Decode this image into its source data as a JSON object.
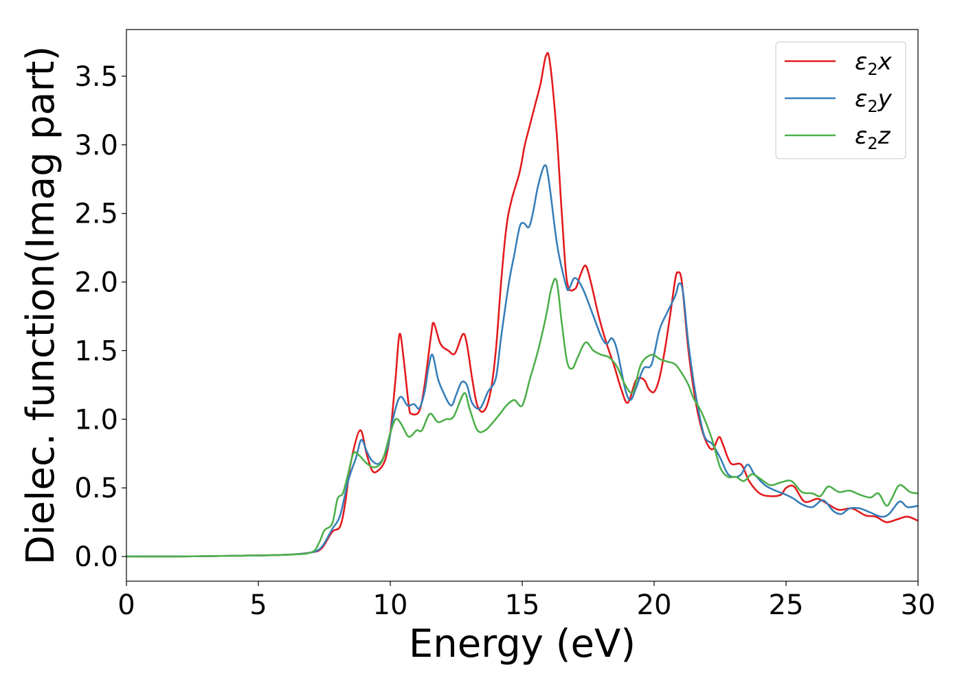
{
  "chart_data": {
    "type": "line",
    "title": "",
    "xlabel": "Energy (eV)",
    "ylabel": "Dielec. function(Imag part)",
    "xlim": [
      0,
      30
    ],
    "ylim": [
      -0.18,
      3.84
    ],
    "xticks": [
      0,
      5,
      10,
      15,
      20,
      25,
      30
    ],
    "xtick_labels": [
      "0",
      "5",
      "10",
      "15",
      "20",
      "25",
      "30"
    ],
    "yticks": [
      0.0,
      0.5,
      1.0,
      1.5,
      2.0,
      2.5,
      3.0,
      3.5
    ],
    "ytick_labels": [
      "0.0",
      "0.5",
      "1.0",
      "1.5",
      "2.0",
      "2.5",
      "3.0",
      "3.5"
    ],
    "grid": false,
    "legend_position": "top-right",
    "series": [
      {
        "name": "ε2x",
        "legend_base": "ε",
        "legend_sub": "2",
        "legend_suffix": "x",
        "color": "#e31a1c",
        "points": [
          [
            0,
            0.0
          ],
          [
            2,
            0.0
          ],
          [
            4,
            0.005
          ],
          [
            6,
            0.012
          ],
          [
            7,
            0.03
          ],
          [
            7.4,
            0.06
          ],
          [
            7.8,
            0.18
          ],
          [
            8.1,
            0.22
          ],
          [
            8.3,
            0.4
          ],
          [
            8.5,
            0.68
          ],
          [
            8.85,
            0.92
          ],
          [
            9.1,
            0.75
          ],
          [
            9.3,
            0.63
          ],
          [
            9.5,
            0.62
          ],
          [
            9.8,
            0.7
          ],
          [
            10.0,
            0.9
          ],
          [
            10.2,
            1.3
          ],
          [
            10.35,
            1.62
          ],
          [
            10.5,
            1.45
          ],
          [
            10.7,
            1.1
          ],
          [
            10.8,
            1.04
          ],
          [
            11.1,
            1.06
          ],
          [
            11.3,
            1.25
          ],
          [
            11.55,
            1.62
          ],
          [
            11.65,
            1.7
          ],
          [
            11.9,
            1.55
          ],
          [
            12.2,
            1.5
          ],
          [
            12.45,
            1.48
          ],
          [
            12.75,
            1.62
          ],
          [
            12.9,
            1.55
          ],
          [
            13.1,
            1.3
          ],
          [
            13.3,
            1.1
          ],
          [
            13.55,
            1.06
          ],
          [
            13.8,
            1.2
          ],
          [
            14.0,
            1.5
          ],
          [
            14.2,
            2.0
          ],
          [
            14.4,
            2.4
          ],
          [
            14.6,
            2.6
          ],
          [
            14.9,
            2.8
          ],
          [
            15.1,
            3.0
          ],
          [
            15.3,
            3.15
          ],
          [
            15.5,
            3.3
          ],
          [
            15.7,
            3.45
          ],
          [
            15.9,
            3.65
          ],
          [
            16.05,
            3.6
          ],
          [
            16.3,
            3.1
          ],
          [
            16.5,
            2.5
          ],
          [
            16.7,
            2.0
          ],
          [
            17.0,
            1.95
          ],
          [
            17.2,
            2.05
          ],
          [
            17.4,
            2.12
          ],
          [
            17.6,
            2.0
          ],
          [
            17.9,
            1.75
          ],
          [
            18.2,
            1.55
          ],
          [
            18.5,
            1.38
          ],
          [
            18.75,
            1.22
          ],
          [
            19.0,
            1.12
          ],
          [
            19.3,
            1.28
          ],
          [
            19.5,
            1.3
          ],
          [
            19.65,
            1.28
          ],
          [
            19.8,
            1.22
          ],
          [
            20.0,
            1.2
          ],
          [
            20.2,
            1.3
          ],
          [
            20.4,
            1.5
          ],
          [
            20.6,
            1.75
          ],
          [
            20.8,
            2.02
          ],
          [
            20.9,
            2.07
          ],
          [
            21.05,
            2.0
          ],
          [
            21.3,
            1.5
          ],
          [
            21.6,
            1.1
          ],
          [
            21.9,
            0.87
          ],
          [
            22.2,
            0.78
          ],
          [
            22.45,
            0.87
          ],
          [
            22.6,
            0.82
          ],
          [
            22.9,
            0.68
          ],
          [
            23.3,
            0.67
          ],
          [
            23.6,
            0.55
          ],
          [
            24.0,
            0.46
          ],
          [
            24.4,
            0.44
          ],
          [
            24.8,
            0.45
          ],
          [
            25.0,
            0.5
          ],
          [
            25.3,
            0.51
          ],
          [
            25.7,
            0.4
          ],
          [
            26.2,
            0.42
          ],
          [
            26.6,
            0.38
          ],
          [
            27.0,
            0.34
          ],
          [
            27.5,
            0.35
          ],
          [
            28.0,
            0.3
          ],
          [
            28.4,
            0.29
          ],
          [
            28.8,
            0.25
          ],
          [
            29.2,
            0.27
          ],
          [
            29.6,
            0.29
          ],
          [
            30.0,
            0.26
          ]
        ]
      },
      {
        "name": "ε2y",
        "legend_base": "ε",
        "legend_sub": "2",
        "legend_suffix": "y",
        "color": "#377eb8",
        "points": [
          [
            0,
            0.0
          ],
          [
            2,
            0.0
          ],
          [
            4,
            0.005
          ],
          [
            6,
            0.012
          ],
          [
            7,
            0.03
          ],
          [
            7.4,
            0.07
          ],
          [
            7.8,
            0.2
          ],
          [
            8.1,
            0.3
          ],
          [
            8.4,
            0.55
          ],
          [
            8.7,
            0.72
          ],
          [
            8.9,
            0.85
          ],
          [
            9.1,
            0.77
          ],
          [
            9.3,
            0.7
          ],
          [
            9.6,
            0.68
          ],
          [
            9.9,
            0.8
          ],
          [
            10.1,
            1.0
          ],
          [
            10.3,
            1.14
          ],
          [
            10.45,
            1.16
          ],
          [
            10.65,
            1.1
          ],
          [
            10.9,
            1.11
          ],
          [
            11.1,
            1.08
          ],
          [
            11.3,
            1.2
          ],
          [
            11.45,
            1.38
          ],
          [
            11.6,
            1.47
          ],
          [
            11.8,
            1.3
          ],
          [
            12.0,
            1.2
          ],
          [
            12.3,
            1.1
          ],
          [
            12.5,
            1.18
          ],
          [
            12.7,
            1.27
          ],
          [
            12.9,
            1.25
          ],
          [
            13.1,
            1.12
          ],
          [
            13.4,
            1.08
          ],
          [
            13.7,
            1.2
          ],
          [
            14.0,
            1.3
          ],
          [
            14.2,
            1.6
          ],
          [
            14.5,
            2.0
          ],
          [
            14.7,
            2.2
          ],
          [
            14.9,
            2.4
          ],
          [
            15.05,
            2.43
          ],
          [
            15.25,
            2.4
          ],
          [
            15.4,
            2.5
          ],
          [
            15.6,
            2.7
          ],
          [
            15.85,
            2.85
          ],
          [
            16.0,
            2.75
          ],
          [
            16.3,
            2.3
          ],
          [
            16.5,
            2.1
          ],
          [
            16.7,
            1.95
          ],
          [
            16.8,
            1.96
          ],
          [
            17.0,
            2.03
          ],
          [
            17.3,
            1.95
          ],
          [
            17.7,
            1.75
          ],
          [
            18.0,
            1.6
          ],
          [
            18.2,
            1.55
          ],
          [
            18.4,
            1.59
          ],
          [
            18.6,
            1.5
          ],
          [
            18.9,
            1.22
          ],
          [
            19.1,
            1.14
          ],
          [
            19.3,
            1.22
          ],
          [
            19.6,
            1.37
          ],
          [
            19.9,
            1.4
          ],
          [
            20.2,
            1.65
          ],
          [
            20.5,
            1.78
          ],
          [
            20.8,
            1.9
          ],
          [
            20.95,
            1.99
          ],
          [
            21.1,
            1.92
          ],
          [
            21.3,
            1.55
          ],
          [
            21.6,
            1.15
          ],
          [
            21.9,
            0.88
          ],
          [
            22.2,
            0.82
          ],
          [
            22.5,
            0.72
          ],
          [
            22.8,
            0.6
          ],
          [
            23.1,
            0.58
          ],
          [
            23.3,
            0.6
          ],
          [
            23.55,
            0.67
          ],
          [
            23.8,
            0.6
          ],
          [
            24.2,
            0.52
          ],
          [
            24.6,
            0.48
          ],
          [
            25.0,
            0.45
          ],
          [
            25.3,
            0.42
          ],
          [
            25.6,
            0.38
          ],
          [
            26.0,
            0.36
          ],
          [
            26.4,
            0.41
          ],
          [
            26.8,
            0.33
          ],
          [
            27.1,
            0.31
          ],
          [
            27.4,
            0.35
          ],
          [
            27.8,
            0.35
          ],
          [
            28.2,
            0.32
          ],
          [
            28.6,
            0.29
          ],
          [
            28.9,
            0.31
          ],
          [
            29.3,
            0.4
          ],
          [
            29.6,
            0.36
          ],
          [
            30.0,
            0.37
          ]
        ]
      },
      {
        "name": "ε2z",
        "legend_base": "ε",
        "legend_sub": "2",
        "legend_suffix": "z",
        "color": "#4daf4a",
        "points": [
          [
            0,
            0.0
          ],
          [
            2,
            0.0
          ],
          [
            4,
            0.005
          ],
          [
            6,
            0.012
          ],
          [
            7,
            0.03
          ],
          [
            7.3,
            0.1
          ],
          [
            7.5,
            0.19
          ],
          [
            7.8,
            0.24
          ],
          [
            8.0,
            0.42
          ],
          [
            8.2,
            0.46
          ],
          [
            8.4,
            0.6
          ],
          [
            8.6,
            0.75
          ],
          [
            8.8,
            0.74
          ],
          [
            9.1,
            0.68
          ],
          [
            9.4,
            0.65
          ],
          [
            9.7,
            0.7
          ],
          [
            10.0,
            0.9
          ],
          [
            10.2,
            1.0
          ],
          [
            10.4,
            0.97
          ],
          [
            10.65,
            0.88
          ],
          [
            10.8,
            0.88
          ],
          [
            11.0,
            0.92
          ],
          [
            11.2,
            0.92
          ],
          [
            11.5,
            1.04
          ],
          [
            11.8,
            0.98
          ],
          [
            12.1,
            1.0
          ],
          [
            12.4,
            1.02
          ],
          [
            12.8,
            1.19
          ],
          [
            13.0,
            1.08
          ],
          [
            13.3,
            0.92
          ],
          [
            13.6,
            0.92
          ],
          [
            13.9,
            0.98
          ],
          [
            14.2,
            1.05
          ],
          [
            14.4,
            1.1
          ],
          [
            14.7,
            1.14
          ],
          [
            15.0,
            1.1
          ],
          [
            15.3,
            1.3
          ],
          [
            15.6,
            1.5
          ],
          [
            15.9,
            1.75
          ],
          [
            16.1,
            1.95
          ],
          [
            16.3,
            2.01
          ],
          [
            16.5,
            1.7
          ],
          [
            16.7,
            1.42
          ],
          [
            16.9,
            1.37
          ],
          [
            17.1,
            1.45
          ],
          [
            17.4,
            1.56
          ],
          [
            17.7,
            1.5
          ],
          [
            18.0,
            1.47
          ],
          [
            18.3,
            1.45
          ],
          [
            18.6,
            1.38
          ],
          [
            18.9,
            1.25
          ],
          [
            19.2,
            1.2
          ],
          [
            19.5,
            1.4
          ],
          [
            19.9,
            1.47
          ],
          [
            20.2,
            1.44
          ],
          [
            20.5,
            1.42
          ],
          [
            20.8,
            1.4
          ],
          [
            21.1,
            1.32
          ],
          [
            21.3,
            1.25
          ],
          [
            21.5,
            1.15
          ],
          [
            21.8,
            1.05
          ],
          [
            22.2,
            0.85
          ],
          [
            22.5,
            0.65
          ],
          [
            22.8,
            0.58
          ],
          [
            23.1,
            0.58
          ],
          [
            23.4,
            0.55
          ],
          [
            23.7,
            0.6
          ],
          [
            24.0,
            0.57
          ],
          [
            24.4,
            0.52
          ],
          [
            24.8,
            0.54
          ],
          [
            25.2,
            0.55
          ],
          [
            25.6,
            0.47
          ],
          [
            26.0,
            0.46
          ],
          [
            26.3,
            0.44
          ],
          [
            26.6,
            0.51
          ],
          [
            27.0,
            0.47
          ],
          [
            27.4,
            0.48
          ],
          [
            27.8,
            0.45
          ],
          [
            28.2,
            0.43
          ],
          [
            28.5,
            0.46
          ],
          [
            28.8,
            0.37
          ],
          [
            29.0,
            0.42
          ],
          [
            29.3,
            0.52
          ],
          [
            29.7,
            0.47
          ],
          [
            30.0,
            0.46
          ]
        ]
      }
    ]
  }
}
